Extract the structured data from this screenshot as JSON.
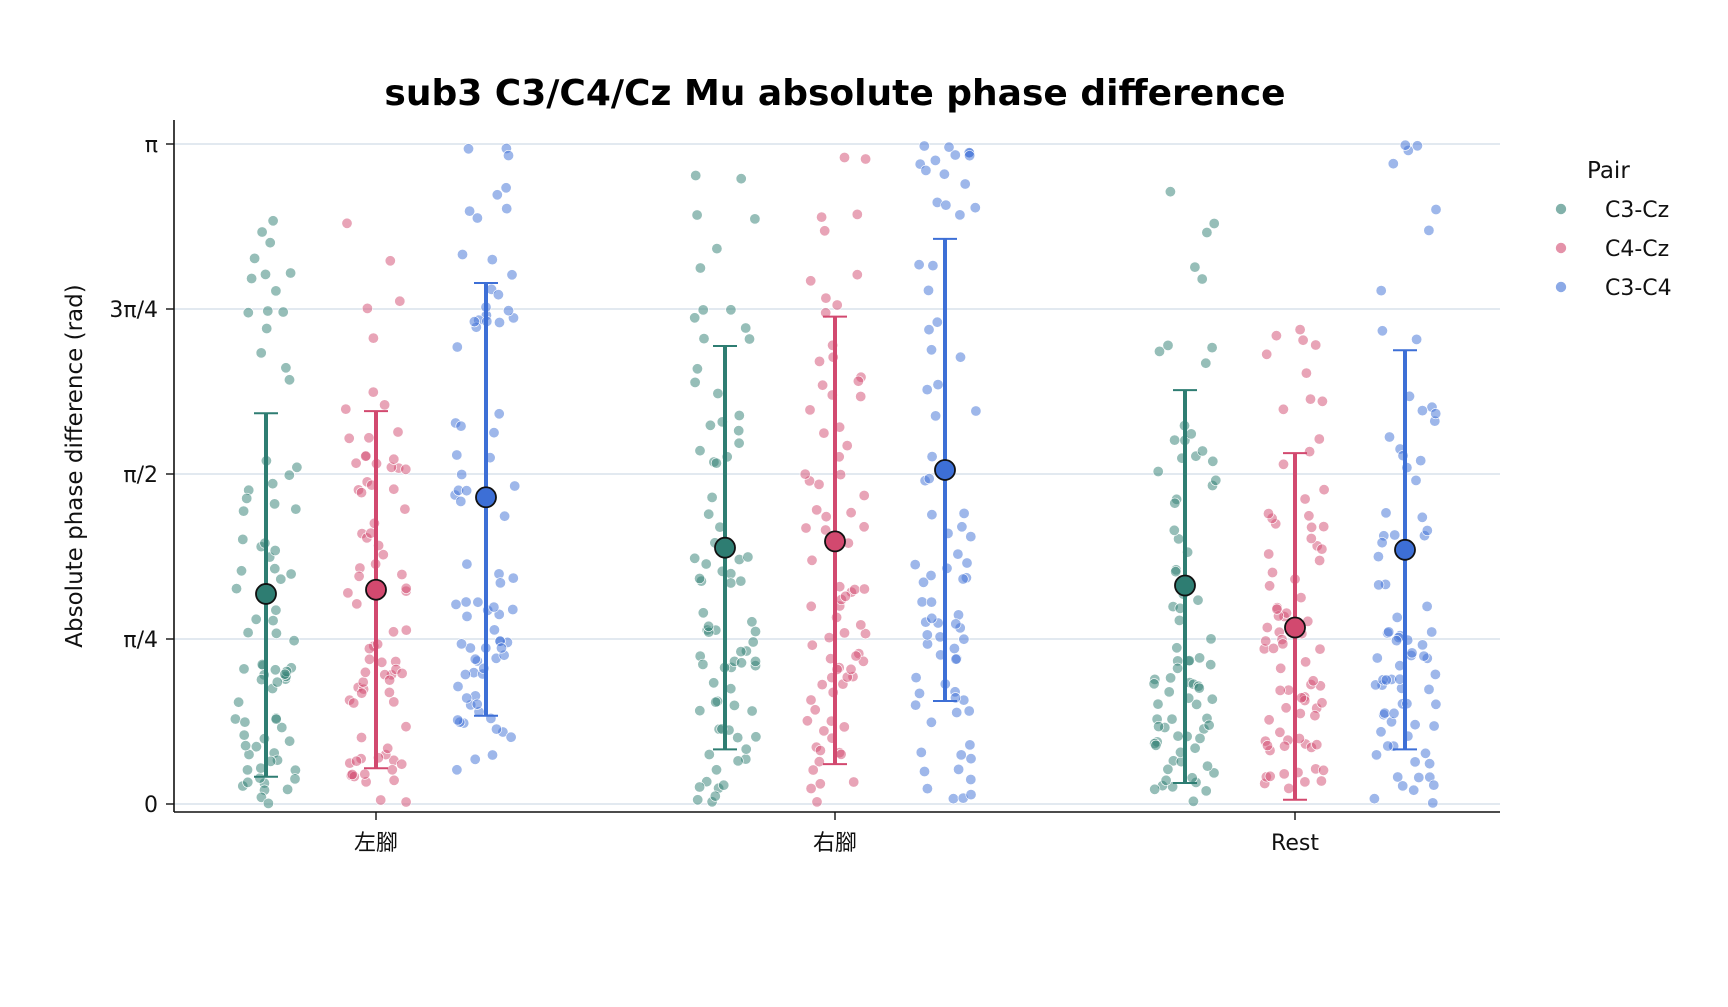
{
  "colors": {
    "C3-Cz": "#2e7d72",
    "C4-Cz": "#d2496f",
    "C3-C4": "#3d6fd6",
    "grid": "#d9e2ec",
    "axis": "#111111"
  },
  "chart_data": {
    "type": "scatter",
    "title": "sub3 C3/C4/Cz Mu absolute phase difference",
    "xlabel": "",
    "ylabel": "Absolute phase difference (rad)",
    "categories": [
      "左腳",
      "右腳",
      "Rest"
    ],
    "ylim": [
      0,
      3.1416
    ],
    "yticks": [
      0,
      0.7854,
      1.5708,
      2.3562,
      3.1416
    ],
    "ytick_labels": [
      "0",
      "π/4",
      "π/2",
      "3π/4",
      "π"
    ],
    "grid": true,
    "legend": {
      "title": "Pair",
      "placement": "upper right, outside plot"
    },
    "series": [
      {
        "name": "C3-Cz",
        "mean": [
          1.0,
          1.22,
          1.04
        ],
        "err_low": [
          0.13,
          0.26,
          0.1
        ],
        "err_high": [
          1.86,
          2.18,
          1.97
        ],
        "n_points": [
          80,
          80,
          80
        ]
      },
      {
        "name": "C4-Cz",
        "mean": [
          1.02,
          1.25,
          0.84
        ],
        "err_low": [
          0.17,
          0.19,
          0.02
        ],
        "err_high": [
          1.87,
          2.32,
          1.67
        ],
        "n_points": [
          80,
          80,
          80
        ]
      },
      {
        "name": "C3-C4",
        "mean": [
          1.46,
          1.59,
          1.21
        ],
        "err_low": [
          0.42,
          0.49,
          0.26
        ],
        "err_high": [
          2.48,
          2.69,
          2.16
        ],
        "n_points": [
          80,
          80,
          80
        ]
      }
    ]
  }
}
